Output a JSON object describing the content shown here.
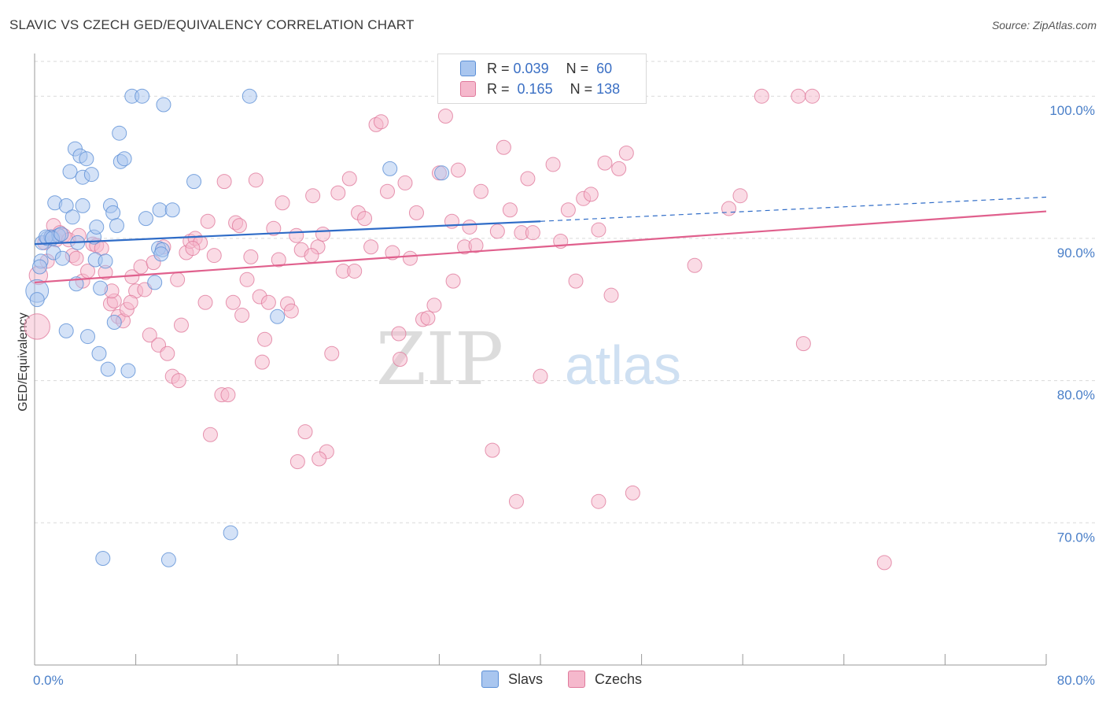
{
  "header": {
    "title": "SLAVIC VS CZECH GED/EQUIVALENCY CORRELATION CHART",
    "source": "Source: ZipAtlas.com"
  },
  "watermark": {
    "zip": "ZIP",
    "atlas": "atlas"
  },
  "legend": {
    "rows": [
      {
        "r_label": "R =",
        "r_value": "0.039",
        "n_label": "N =",
        "n_value": "60"
      },
      {
        "r_label": "R =",
        "r_value": "0.165",
        "n_label": "N =",
        "n_value": "138"
      }
    ]
  },
  "bottom_legend": {
    "slavs": "Slavs",
    "czechs": "Czechs"
  },
  "colors": {
    "slavs_fill": "#a9c6ef",
    "slavs_stroke": "#5b8fd6",
    "slavs_line": "#2f6cc7",
    "czechs_fill": "#f5b8cc",
    "czechs_stroke": "#e07a9c",
    "czechs_line": "#e0608d",
    "grid": "#d9d9d9",
    "tick": "#4a7fc8"
  },
  "chart_data": {
    "type": "scatter",
    "title": "SLAVIC VS CZECH GED/EQUIVALENCY CORRELATION CHART",
    "xlabel": "",
    "ylabel": "GED/Equivalency",
    "xlim": [
      0,
      80
    ],
    "ylim": [
      60,
      103
    ],
    "x_tick_labels": [
      "0.0%",
      "80.0%"
    ],
    "y_ticks": [
      70,
      80,
      90,
      100
    ],
    "y_tick_labels": [
      "70.0%",
      "80.0%",
      "90.0%",
      "100.0%"
    ],
    "grid": true,
    "legend_position": "top-center",
    "series": [
      {
        "name": "Slavs",
        "r": 0.039,
        "n": 60,
        "trend": {
          "x0": 0,
          "y0": 89.6,
          "x1": 40,
          "y1": 91.2,
          "dashed_to_x": 80,
          "dashed_to_y": 92.9
        },
        "points": [
          [
            0.2,
            86.3,
            1.6
          ],
          [
            0.2,
            85.7,
            1
          ],
          [
            0.5,
            88.4,
            1
          ],
          [
            0.6,
            89.7,
            1
          ],
          [
            1.0,
            90.0,
            1
          ],
          [
            1.3,
            90.1,
            1
          ],
          [
            1.5,
            89.0,
            1
          ],
          [
            1.6,
            92.5,
            1
          ],
          [
            1.9,
            90.2,
            1
          ],
          [
            2.2,
            88.6,
            1
          ],
          [
            2.5,
            92.3,
            1
          ],
          [
            2.5,
            83.5,
            1
          ],
          [
            2.8,
            94.7,
            1
          ],
          [
            3.0,
            91.5,
            1
          ],
          [
            3.2,
            96.3,
            1
          ],
          [
            3.3,
            86.8,
            1
          ],
          [
            3.6,
            95.8,
            1
          ],
          [
            3.8,
            94.3,
            1
          ],
          [
            3.8,
            92.3,
            1
          ],
          [
            4.1,
            95.6,
            1
          ],
          [
            4.2,
            83.1,
            1
          ],
          [
            4.5,
            94.5,
            1
          ],
          [
            4.7,
            90.1,
            1
          ],
          [
            4.8,
            88.5,
            1
          ],
          [
            4.9,
            90.8,
            1
          ],
          [
            5.1,
            81.9,
            1
          ],
          [
            5.2,
            86.5,
            1
          ],
          [
            5.4,
            67.5,
            1
          ],
          [
            5.6,
            88.4,
            1
          ],
          [
            5.8,
            80.8,
            1
          ],
          [
            6.0,
            92.3,
            1
          ],
          [
            6.2,
            91.8,
            1
          ],
          [
            6.3,
            84.1,
            1
          ],
          [
            6.7,
            97.4,
            1
          ],
          [
            6.8,
            95.4,
            1
          ],
          [
            7.1,
            95.6,
            1
          ],
          [
            7.4,
            80.7,
            1
          ],
          [
            7.7,
            100.0,
            1
          ],
          [
            8.5,
            100.0,
            1
          ],
          [
            8.8,
            91.4,
            1
          ],
          [
            9.5,
            86.9,
            1
          ],
          [
            9.8,
            89.3,
            1
          ],
          [
            9.9,
            92.0,
            1
          ],
          [
            10.1,
            89.2,
            1
          ],
          [
            10.2,
            99.4,
            1
          ],
          [
            10.6,
            67.4,
            1
          ],
          [
            10.9,
            92.0,
            1
          ],
          [
            12.6,
            94.0,
            1
          ],
          [
            15.5,
            69.3,
            1
          ],
          [
            17.0,
            100.0,
            1
          ],
          [
            19.2,
            84.5,
            1
          ],
          [
            28.1,
            94.9,
            1
          ],
          [
            32.2,
            94.6,
            1
          ],
          [
            0.9,
            90.1,
            1
          ],
          [
            1.4,
            90.0,
            1
          ],
          [
            2.1,
            90.3,
            1
          ],
          [
            10.0,
            88.9,
            1
          ],
          [
            0.4,
            88.0,
            1
          ],
          [
            3.4,
            89.7,
            1
          ],
          [
            6.5,
            90.9,
            1
          ]
        ]
      },
      {
        "name": "Czechs",
        "r": 0.165,
        "n": 138,
        "trend": {
          "x0": 0,
          "y0": 86.9,
          "x1": 80,
          "y1": 91.9
        },
        "points": [
          [
            0.2,
            83.8,
            1.8
          ],
          [
            0.3,
            87.4,
            1.3
          ],
          [
            0.8,
            89.7,
            1
          ],
          [
            1.0,
            88.4,
            1
          ],
          [
            1.3,
            90.1,
            1
          ],
          [
            1.5,
            90.9,
            1
          ],
          [
            1.7,
            89.9,
            1
          ],
          [
            2.0,
            90.4,
            1
          ],
          [
            2.3,
            90.2,
            1
          ],
          [
            2.7,
            89.9,
            1
          ],
          [
            3.0,
            88.8,
            1
          ],
          [
            3.3,
            88.6,
            1
          ],
          [
            3.5,
            90.2,
            1
          ],
          [
            3.8,
            87.0,
            1
          ],
          [
            4.2,
            87.7,
            1
          ],
          [
            4.6,
            89.6,
            1
          ],
          [
            4.9,
            89.5,
            1
          ],
          [
            5.3,
            89.3,
            1
          ],
          [
            5.6,
            87.6,
            1
          ],
          [
            6.0,
            85.4,
            1
          ],
          [
            6.3,
            85.6,
            1
          ],
          [
            6.6,
            84.5,
            1
          ],
          [
            7.0,
            84.2,
            1
          ],
          [
            7.3,
            85.0,
            1
          ],
          [
            7.7,
            87.3,
            1
          ],
          [
            8.0,
            86.3,
            1
          ],
          [
            8.4,
            88.0,
            1
          ],
          [
            8.7,
            86.4,
            1
          ],
          [
            9.1,
            83.2,
            1
          ],
          [
            9.4,
            88.3,
            1
          ],
          [
            9.8,
            82.5,
            1
          ],
          [
            10.2,
            89.4,
            1
          ],
          [
            10.5,
            81.9,
            1
          ],
          [
            10.9,
            80.3,
            1
          ],
          [
            11.3,
            87.1,
            1
          ],
          [
            11.6,
            83.9,
            1
          ],
          [
            12.0,
            89.0,
            1
          ],
          [
            12.3,
            89.8,
            1
          ],
          [
            12.7,
            90.0,
            1
          ],
          [
            13.1,
            89.7,
            1
          ],
          [
            13.5,
            85.5,
            1
          ],
          [
            13.7,
            91.2,
            1
          ],
          [
            14.2,
            88.8,
            1
          ],
          [
            14.8,
            79.0,
            1
          ],
          [
            15.0,
            94.0,
            1
          ],
          [
            15.3,
            79.0,
            1
          ],
          [
            15.7,
            85.5,
            1
          ],
          [
            15.9,
            91.1,
            1
          ],
          [
            16.4,
            84.6,
            1
          ],
          [
            16.8,
            87.1,
            1
          ],
          [
            17.1,
            88.7,
            1
          ],
          [
            17.5,
            94.1,
            1
          ],
          [
            17.8,
            85.9,
            1
          ],
          [
            18.2,
            82.9,
            1
          ],
          [
            18.5,
            85.5,
            1
          ],
          [
            18.9,
            90.7,
            1
          ],
          [
            19.3,
            88.5,
            1
          ],
          [
            19.6,
            92.5,
            1
          ],
          [
            20.0,
            85.4,
            1
          ],
          [
            20.3,
            84.9,
            1
          ],
          [
            20.7,
            90.2,
            1
          ],
          [
            21.1,
            89.2,
            1
          ],
          [
            21.4,
            76.4,
            1
          ],
          [
            22.0,
            93.0,
            1
          ],
          [
            22.4,
            89.4,
            1
          ],
          [
            22.8,
            90.3,
            1
          ],
          [
            23.1,
            75.0,
            1
          ],
          [
            23.5,
            81.9,
            1
          ],
          [
            24.0,
            93.2,
            1
          ],
          [
            24.4,
            87.7,
            1
          ],
          [
            24.9,
            94.2,
            1
          ],
          [
            25.3,
            87.7,
            1
          ],
          [
            25.6,
            91.8,
            1
          ],
          [
            26.1,
            91.4,
            1
          ],
          [
            26.6,
            89.4,
            1
          ],
          [
            27.0,
            98.0,
            1
          ],
          [
            27.4,
            98.2,
            1
          ],
          [
            27.9,
            93.3,
            1
          ],
          [
            28.3,
            89.0,
            1
          ],
          [
            28.8,
            83.3,
            1
          ],
          [
            28.9,
            81.5,
            1
          ],
          [
            29.3,
            93.9,
            1
          ],
          [
            29.7,
            88.6,
            1
          ],
          [
            30.2,
            91.8,
            1
          ],
          [
            30.7,
            84.3,
            1
          ],
          [
            31.1,
            84.4,
            1
          ],
          [
            31.6,
            85.3,
            1
          ],
          [
            32.0,
            94.6,
            1
          ],
          [
            32.5,
            98.6,
            1
          ],
          [
            33.0,
            91.2,
            1
          ],
          [
            33.5,
            94.8,
            1
          ],
          [
            34.0,
            89.4,
            1
          ],
          [
            34.4,
            90.8,
            1
          ],
          [
            34.9,
            89.5,
            1
          ],
          [
            35.3,
            93.3,
            1
          ],
          [
            35.8,
            100.0,
            1
          ],
          [
            36.2,
            75.1,
            1
          ],
          [
            36.6,
            90.5,
            1
          ],
          [
            37.1,
            96.4,
            1
          ],
          [
            37.6,
            92.0,
            1
          ],
          [
            38.1,
            71.5,
            1
          ],
          [
            38.5,
            90.4,
            1
          ],
          [
            39.0,
            94.2,
            1
          ],
          [
            39.4,
            90.4,
            1
          ],
          [
            40.0,
            80.3,
            1
          ],
          [
            41.0,
            95.2,
            1
          ],
          [
            41.6,
            89.8,
            1
          ],
          [
            42.2,
            92.0,
            1
          ],
          [
            42.8,
            87.0,
            1
          ],
          [
            43.4,
            92.8,
            1
          ],
          [
            44.0,
            93.1,
            1
          ],
          [
            44.6,
            71.5,
            1
          ],
          [
            45.1,
            95.3,
            1
          ],
          [
            45.6,
            86.0,
            1
          ],
          [
            46.2,
            94.9,
            1
          ],
          [
            46.8,
            96.0,
            1
          ],
          [
            47.3,
            72.1,
            1
          ],
          [
            47.8,
            100.0,
            1
          ],
          [
            52.2,
            88.1,
            1
          ],
          [
            54.9,
            92.1,
            1
          ],
          [
            55.8,
            93.0,
            1
          ],
          [
            57.5,
            100.0,
            1
          ],
          [
            60.4,
            100.0,
            1
          ],
          [
            61.5,
            100.0,
            1
          ],
          [
            60.8,
            82.6,
            1
          ],
          [
            67.2,
            67.2,
            1
          ],
          [
            44.6,
            90.6,
            1
          ],
          [
            20.8,
            74.3,
            1
          ],
          [
            22.5,
            74.5,
            1
          ],
          [
            13.9,
            76.2,
            1
          ],
          [
            18.0,
            81.3,
            1
          ],
          [
            12.5,
            89.3,
            1
          ],
          [
            16.2,
            90.9,
            1
          ],
          [
            6.1,
            86.3,
            1
          ],
          [
            7.6,
            85.5,
            1
          ],
          [
            21.9,
            88.8,
            1
          ],
          [
            33.1,
            87.0,
            1
          ],
          [
            11.4,
            80.0,
            1
          ]
        ]
      }
    ]
  }
}
